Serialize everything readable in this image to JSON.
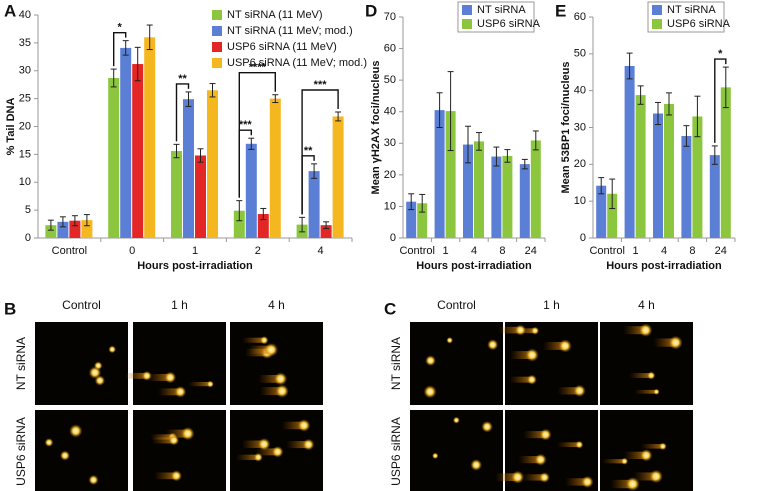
{
  "chart_data": [
    {
      "type": "bar",
      "label": "A",
      "y_label": "% Tail DNA",
      "x_label": "Hours post-irradiation",
      "categories": [
        "Control",
        "0",
        "1",
        "2",
        "4"
      ],
      "series": [
        {
          "name": "NT siRNA (11 MeV)",
          "color": "#8cc63f",
          "values": [
            2.3,
            28.7,
            15.6,
            4.9,
            2.4
          ],
          "errors": [
            0.9,
            1.6,
            1.2,
            1.8,
            1.3
          ]
        },
        {
          "name": "NT siRNA (11 MeV; mod.)",
          "color": "#5b7fd4",
          "values": [
            2.9,
            34.1,
            24.9,
            16.9,
            12.0
          ],
          "errors": [
            0.9,
            1.3,
            1.3,
            1.0,
            1.3
          ]
        },
        {
          "name": "USP6 siRNA (11 MeV)",
          "color": "#e32626",
          "values": [
            3.1,
            31.2,
            14.8,
            4.3,
            2.3
          ],
          "errors": [
            0.9,
            3.0,
            1.2,
            1.0,
            0.6
          ]
        },
        {
          "name": "USP6 siRNA (11 MeV; mod.)",
          "color": "#f5b720",
          "values": [
            3.2,
            36.0,
            26.5,
            25.0,
            21.8
          ],
          "errors": [
            1.0,
            2.2,
            1.2,
            0.7,
            0.8
          ]
        }
      ],
      "ylim": [
        0,
        40
      ],
      "yticks": [
        0,
        5,
        10,
        15,
        20,
        25,
        30,
        35,
        40
      ],
      "grid": false,
      "annotations": [
        "*",
        "**",
        "***",
        "****",
        "**",
        "***"
      ]
    },
    {
      "type": "bar",
      "label": "D",
      "y_label": "Mean γH2AX foci/nucleus",
      "x_label": "Hours post-irradiation",
      "categories": [
        "Control",
        "1",
        "4",
        "8",
        "24"
      ],
      "series": [
        {
          "name": "NT siRNA",
          "color": "#5b7fd4",
          "values": [
            11.5,
            40.5,
            29.6,
            25.8,
            23.4
          ],
          "errors": [
            2.5,
            5.5,
            5.8,
            3.0,
            1.5
          ]
        },
        {
          "name": "USP6 siRNA",
          "color": "#8cc63f",
          "values": [
            11.0,
            40.2,
            30.6,
            26.0,
            30.9
          ],
          "errors": [
            2.8,
            12.5,
            2.8,
            2.0,
            3.0
          ]
        }
      ],
      "ylim": [
        0,
        70
      ],
      "yticks": [
        0,
        10,
        20,
        30,
        40,
        50,
        60,
        70
      ],
      "grid": false,
      "annotations": []
    },
    {
      "type": "bar",
      "label": "E",
      "y_label": "Mean 53BP1 foci/nucleus",
      "x_label": "Hours post-irradiation",
      "categories": [
        "Control",
        "1",
        "4",
        "8",
        "24"
      ],
      "series": [
        {
          "name": "NT siRNA",
          "color": "#5b7fd4",
          "values": [
            14.2,
            46.7,
            33.8,
            27.7,
            22.5
          ],
          "errors": [
            2.2,
            3.5,
            3.0,
            2.8,
            2.5
          ]
        },
        {
          "name": "USP6 siRNA",
          "color": "#8cc63f",
          "values": [
            12.0,
            38.8,
            36.4,
            33.0,
            40.9
          ],
          "errors": [
            4.0,
            2.5,
            3.0,
            5.5,
            5.5
          ]
        }
      ],
      "ylim": [
        0,
        60
      ],
      "yticks": [
        0,
        10,
        20,
        30,
        40,
        50,
        60
      ],
      "grid": false,
      "annotations": [
        "*"
      ]
    }
  ],
  "image_panels": [
    {
      "label": "B",
      "columns": [
        "Control",
        "1 h",
        "4 h"
      ],
      "rows": [
        "NT siRNA",
        "USP6 siRNA"
      ]
    },
    {
      "label": "C",
      "columns": [
        "Control",
        "1 h",
        "4 h"
      ],
      "rows": [
        "NT siRNA",
        "USP6 siRNA"
      ]
    }
  ]
}
